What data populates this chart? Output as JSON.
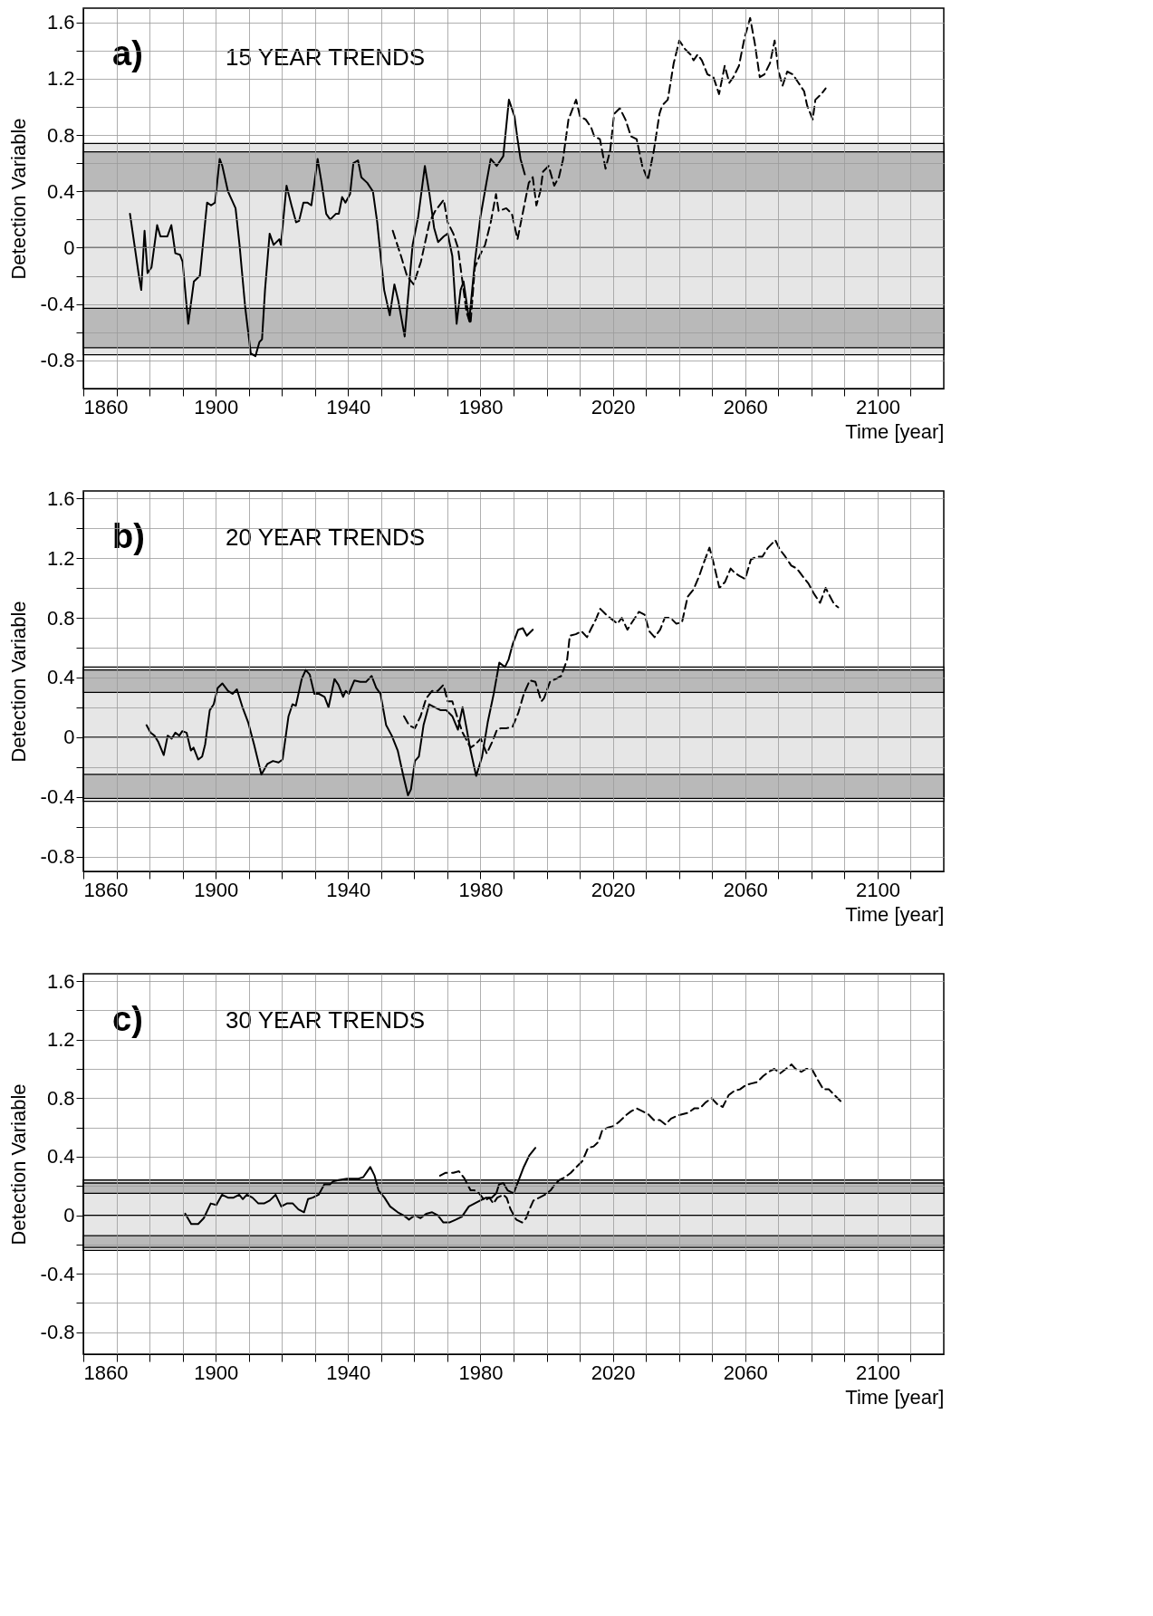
{
  "chart_data": [
    {
      "type": "line",
      "title": "15 YEAR TRENDS",
      "xlabel": "Time [year]",
      "ylabel": "Detection Variable",
      "annotations": [
        "a)"
      ],
      "xlim": [
        1860,
        2120
      ],
      "ylim": [
        -1.0,
        1.7
      ],
      "grid": true,
      "xticks": [
        1860,
        {
          "value": 1870,
          "label": null
        },
        {
          "value": 1880,
          "label": null
        },
        {
          "value": 1890,
          "label": null
        },
        1900,
        {
          "value": 1910,
          "label": null
        },
        {
          "value": 1920,
          "label": null
        },
        {
          "value": 1930,
          "label": null
        },
        1940,
        {
          "value": 1950,
          "label": null
        },
        {
          "value": 1960,
          "label": null
        },
        {
          "value": 1970,
          "label": null
        },
        1980,
        {
          "value": 1990,
          "label": null
        },
        {
          "value": 2000,
          "label": null
        },
        {
          "value": 2010,
          "label": null
        },
        2020,
        {
          "value": 2030,
          "label": null
        },
        {
          "value": 2040,
          "label": null
        },
        {
          "value": 2050,
          "label": null
        },
        2060,
        {
          "value": 2070,
          "label": null
        },
        {
          "value": 2080,
          "label": null
        },
        {
          "value": 2090,
          "label": null
        },
        2100,
        {
          "value": 2110,
          "label": null
        }
      ],
      "yticks": [
        -0.8,
        {
          "value": -0.6,
          "label": null
        },
        -0.4,
        {
          "value": -0.2,
          "label": null
        },
        0,
        {
          "value": 0.2,
          "label": null
        },
        0.4,
        {
          "value": 0.6,
          "label": null
        },
        0.8,
        {
          "value": 1.0,
          "label": null
        },
        1.2,
        {
          "value": 1.4,
          "label": null
        },
        1.6
      ],
      "bands": [
        {
          "axis": "y",
          "from": -0.76,
          "to": 0.74,
          "color": "#e6e6e6"
        },
        {
          "axis": "y",
          "from": 0.4,
          "to": 0.68,
          "color": "#b9b9b9"
        },
        {
          "axis": "y",
          "from": -0.71,
          "to": -0.43,
          "color": "#b9b9b9"
        }
      ],
      "ref_lines": [
        {
          "axis": "y",
          "value": 0
        }
      ],
      "series": [
        {
          "type": "line",
          "color": "#000000",
          "line_style": "solid",
          "x": [
            1874.1,
            1876.8,
            1877.5,
            1878.5,
            1879.4,
            1880.6,
            1882.3,
            1883.3,
            1885.4,
            1886.6,
            1887.8,
            1889.2,
            1890.0,
            1891.7,
            1893.4,
            1895.2,
            1897.4,
            1898.6,
            1899.8,
            1901.2,
            1902.0,
            1903.7,
            1906.0,
            1907.2,
            1908.9,
            1910.6,
            1912.0,
            1913.2,
            1914.0,
            1914.9,
            1916.3,
            1917.5,
            1919.2,
            1919.7,
            1921.4,
            1922.9,
            1924.3,
            1925.2,
            1926.5,
            1927.7,
            1928.9,
            1930.8,
            1932.0,
            1933.4,
            1934.6,
            1936.3,
            1937.2,
            1938.2,
            1939.2,
            1940.6,
            1941.6,
            1943.0,
            1944.0,
            1945.8,
            1947.5,
            1948.8,
            1950.9,
            1952.6,
            1954.0,
            1955.2,
            1957.1,
            1959.5,
            1961.2,
            1963.2,
            1964.6,
            1966.0,
            1967.2,
            1968.9,
            1970.1,
            1971.5,
            1972.8,
            1974.0,
            1974.9,
            1976.6,
            1978.3,
            1980.0,
            1981.8,
            1983.1,
            1984.9,
            1986.9,
            1988.6,
            1990.3,
            1991.2,
            1992.1,
            1993.4
          ],
          "values": [
            0.24,
            -0.2,
            -0.3,
            0.12,
            -0.18,
            -0.14,
            0.16,
            0.08,
            0.08,
            0.16,
            -0.04,
            -0.05,
            -0.1,
            -0.54,
            -0.24,
            -0.2,
            0.32,
            0.3,
            0.32,
            0.63,
            0.58,
            0.4,
            0.28,
            0.02,
            -0.42,
            -0.75,
            -0.77,
            -0.67,
            -0.65,
            -0.3,
            0.1,
            0.02,
            0.06,
            0.02,
            0.44,
            0.3,
            0.18,
            0.19,
            0.32,
            0.32,
            0.3,
            0.63,
            0.46,
            0.24,
            0.2,
            0.24,
            0.24,
            0.36,
            0.32,
            0.38,
            0.6,
            0.62,
            0.5,
            0.46,
            0.4,
            0.18,
            -0.3,
            -0.48,
            -0.26,
            -0.38,
            -0.63,
            0.02,
            0.22,
            0.58,
            0.38,
            0.14,
            0.04,
            0.08,
            0.1,
            -0.06,
            -0.54,
            -0.3,
            -0.24,
            -0.52,
            -0.1,
            0.22,
            0.46,
            0.63,
            0.58,
            0.65,
            1.05,
            0.93,
            0.77,
            0.63,
            0.52
          ]
        },
        {
          "type": "line",
          "color": "#000000",
          "line_style": "dashed",
          "x": [
            1953.5,
            1956.0,
            1957.8,
            1959.8,
            1962.0,
            1964.6,
            1966.3,
            1968.9,
            1970.1,
            1971.8,
            1973.2,
            1974.9,
            1975.8,
            1977.0,
            1978.3,
            1979.7,
            1981.4,
            1983.1,
            1984.7,
            1985.5,
            1987.8,
            1989.5,
            1991.2,
            1992.9,
            1994.6,
            1995.8,
            1996.9,
            1998.1,
            1998.9,
            2000.6,
            2002.3,
            2003.7,
            2004.9,
            2006.6,
            2008.9,
            2010.1,
            2011.8,
            2013.5,
            2014.4,
            2016.1,
            2017.8,
            2019.2,
            2020.4,
            2022.1,
            2023.8,
            2025.5,
            2027.2,
            2028.9,
            2030.6,
            2032.4,
            2034.1,
            2034.9,
            2036.6,
            2038.4,
            2040.1,
            2041.8,
            2043.5,
            2044.4,
            2045.6,
            2046.9,
            2048.6,
            2050.4,
            2052.1,
            2053.8,
            2055.2,
            2056.4,
            2058.1,
            2059.8,
            2061.5,
            2062.9,
            2064.4,
            2065.8,
            2067.5,
            2068.9,
            2070.1,
            2071.3,
            2072.7,
            2074.4,
            2076.1,
            2077.8,
            2078.7,
            2080.4,
            2081.2,
            2083.0,
            2084.3
          ],
          "values": [
            0.12,
            -0.06,
            -0.2,
            -0.26,
            -0.1,
            0.18,
            0.26,
            0.34,
            0.18,
            0.1,
            0,
            -0.3,
            -0.46,
            -0.54,
            -0.14,
            -0.06,
            0.02,
            0.18,
            0.38,
            0.26,
            0.28,
            0.24,
            0.06,
            0.26,
            0.46,
            0.5,
            0.3,
            0.4,
            0.54,
            0.58,
            0.44,
            0.5,
            0.62,
            0.91,
            1.05,
            0.93,
            0.91,
            0.85,
            0.79,
            0.77,
            0.56,
            0.69,
            0.95,
            0.99,
            0.91,
            0.79,
            0.77,
            0.58,
            0.48,
            0.69,
            0.95,
            1.01,
            1.05,
            1.31,
            1.47,
            1.41,
            1.37,
            1.33,
            1.37,
            1.33,
            1.23,
            1.21,
            1.09,
            1.29,
            1.17,
            1.21,
            1.29,
            1.49,
            1.63,
            1.45,
            1.21,
            1.23,
            1.31,
            1.47,
            1.25,
            1.15,
            1.25,
            1.23,
            1.17,
            1.11,
            1.01,
            0.91,
            1.05,
            1.09,
            1.13
          ]
        }
      ]
    },
    {
      "type": "line",
      "title": "20 YEAR TRENDS",
      "xlabel": "Time [year]",
      "ylabel": "Detection Variable",
      "annotations": [
        "b)"
      ],
      "xlim": [
        1860,
        2120
      ],
      "ylim": [
        -0.9,
        1.65
      ],
      "grid": true,
      "xticks": [
        1860,
        {
          "value": 1870,
          "label": null
        },
        {
          "value": 1880,
          "label": null
        },
        {
          "value": 1890,
          "label": null
        },
        1900,
        {
          "value": 1910,
          "label": null
        },
        {
          "value": 1920,
          "label": null
        },
        {
          "value": 1930,
          "label": null
        },
        1940,
        {
          "value": 1950,
          "label": null
        },
        {
          "value": 1960,
          "label": null
        },
        {
          "value": 1970,
          "label": null
        },
        1980,
        {
          "value": 1990,
          "label": null
        },
        {
          "value": 2000,
          "label": null
        },
        {
          "value": 2010,
          "label": null
        },
        2020,
        {
          "value": 2030,
          "label": null
        },
        {
          "value": 2040,
          "label": null
        },
        {
          "value": 2050,
          "label": null
        },
        2060,
        {
          "value": 2070,
          "label": null
        },
        {
          "value": 2080,
          "label": null
        },
        {
          "value": 2090,
          "label": null
        },
        2100,
        {
          "value": 2110,
          "label": null
        }
      ],
      "yticks": [
        -0.8,
        {
          "value": -0.6,
          "label": null
        },
        -0.4,
        {
          "value": -0.2,
          "label": null
        },
        0,
        {
          "value": 0.2,
          "label": null
        },
        0.4,
        {
          "value": 0.6,
          "label": null
        },
        0.8,
        {
          "value": 1.0,
          "label": null
        },
        1.2,
        {
          "value": 1.4,
          "label": null
        },
        1.6
      ],
      "bands": [
        {
          "axis": "y",
          "from": -0.43,
          "to": 0.47,
          "color": "#e6e6e6"
        },
        {
          "axis": "y",
          "from": 0.3,
          "to": 0.45,
          "color": "#b9b9b9"
        },
        {
          "axis": "y",
          "from": -0.41,
          "to": -0.25,
          "color": "#b9b9b9"
        }
      ],
      "ref_lines": [
        {
          "axis": "y",
          "value": 0
        }
      ],
      "series": [
        {
          "type": "line",
          "color": "#000000",
          "line_style": "solid",
          "x": [
            1879.1,
            1880.3,
            1881.5,
            1882.6,
            1884.3,
            1885.5,
            1886.7,
            1887.8,
            1889.0,
            1889.9,
            1891.2,
            1892.5,
            1893.3,
            1894.7,
            1895.9,
            1896.8,
            1898.2,
            1899.4,
            1900.6,
            1902.0,
            1903.7,
            1905.1,
            1906.4,
            1908.1,
            1909.8,
            1911.6,
            1913.8,
            1915.6,
            1917.3,
            1919.0,
            1920.2,
            1922.0,
            1923.2,
            1924.2,
            1926.0,
            1927.2,
            1928.4,
            1929.8,
            1931.2,
            1932.9,
            1934.1,
            1935.9,
            1937.1,
            1938.5,
            1939.3,
            1940.2,
            1941.9,
            1943.7,
            1945.4,
            1947.1,
            1948.5,
            1949.8,
            1951.5,
            1953.2,
            1955.0,
            1956.7,
            1958.1,
            1959.0,
            1960.2,
            1961.4,
            1962.8,
            1964.5,
            1966.2,
            1968.0,
            1969.7,
            1971.5,
            1973.2,
            1974.6,
            1975.8,
            1977.0,
            1978.7,
            1980.5,
            1982.2,
            1984.0,
            1985.7,
            1987.4,
            1988.5,
            1989.7,
            1991.4,
            1992.8,
            1994.0,
            1995.8
          ],
          "values": [
            0.08,
            0.03,
            0.01,
            -0.03,
            -0.12,
            0.01,
            -0.01,
            0.03,
            0.01,
            0.04,
            0.03,
            -0.09,
            -0.07,
            -0.15,
            -0.13,
            -0.05,
            0.18,
            0.22,
            0.33,
            0.36,
            0.31,
            0.29,
            0.32,
            0.2,
            0.1,
            -0.05,
            -0.25,
            -0.18,
            -0.16,
            -0.17,
            -0.15,
            0.14,
            0.22,
            0.21,
            0.39,
            0.45,
            0.42,
            0.29,
            0.29,
            0.27,
            0.2,
            0.39,
            0.35,
            0.27,
            0.31,
            0.29,
            0.38,
            0.37,
            0.37,
            0.41,
            0.33,
            0.29,
            0.08,
            0.01,
            -0.09,
            -0.26,
            -0.39,
            -0.35,
            -0.16,
            -0.13,
            0.08,
            0.22,
            0.2,
            0.18,
            0.18,
            0.14,
            0.05,
            0.2,
            0.06,
            -0.09,
            -0.26,
            -0.13,
            0.1,
            0.29,
            0.5,
            0.47,
            0.52,
            0.62,
            0.72,
            0.73,
            0.68,
            0.72
          ]
        },
        {
          "type": "line",
          "color": "#000000",
          "line_style": "dashed",
          "x": [
            1956.9,
            1958.4,
            1960.2,
            1961.9,
            1963.6,
            1965.4,
            1967.1,
            1968.8,
            1970.1,
            1971.5,
            1973.2,
            1974.6,
            1977.0,
            1978.4,
            1980.1,
            1981.9,
            1983.6,
            1985.0,
            1986.2,
            1987.9,
            1989.7,
            1991.4,
            1993.1,
            1994.9,
            1996.6,
            1998.4,
            1999.2,
            2001.0,
            2002.7,
            2004.4,
            2006.2,
            2007.0,
            2008.8,
            2010.5,
            2012.2,
            2013.5,
            2014.9,
            2016.2,
            2018.0,
            2019.7,
            2021.4,
            2022.7,
            2024.4,
            2025.8,
            2027.9,
            2029.6,
            2031.0,
            2032.6,
            2034.3,
            2035.7,
            2037.4,
            2039.2,
            2040.9,
            2042.6,
            2044.4,
            2046.1,
            2047.5,
            2049.2,
            2050.4,
            2052.2,
            2053.9,
            2055.6,
            2056.9,
            2058.3,
            2060.0,
            2061.7,
            2063.5,
            2065.2,
            2066.9,
            2069.1,
            2070.4,
            2072.1,
            2073.9,
            2075.6,
            2077.3,
            2079.1,
            2080.8,
            2082.6,
            2084.3,
            2085.7,
            2086.9,
            2088.1
          ],
          "values": [
            0.14,
            0.08,
            0.06,
            0.14,
            0.26,
            0.31,
            0.31,
            0.35,
            0.24,
            0.24,
            0.12,
            0.03,
            -0.07,
            -0.05,
            -0.01,
            -0.11,
            -0.03,
            0.05,
            0.06,
            0.06,
            0.07,
            0.16,
            0.29,
            0.38,
            0.37,
            0.24,
            0.26,
            0.37,
            0.39,
            0.41,
            0.52,
            0.68,
            0.69,
            0.71,
            0.67,
            0.73,
            0.79,
            0.86,
            0.82,
            0.79,
            0.76,
            0.8,
            0.72,
            0.77,
            0.84,
            0.82,
            0.71,
            0.67,
            0.72,
            0.8,
            0.8,
            0.76,
            0.77,
            0.94,
            0.99,
            1.08,
            1.17,
            1.27,
            1.17,
            1.0,
            1.04,
            1.13,
            1.1,
            1.08,
            1.06,
            1.19,
            1.21,
            1.21,
            1.27,
            1.32,
            1.26,
            1.21,
            1.15,
            1.13,
            1.08,
            1.03,
            0.96,
            0.9,
            1.0,
            0.94,
            0.89,
            0.87
          ]
        }
      ]
    },
    {
      "type": "line",
      "title": "30 YEAR TRENDS",
      "xlabel": "Time [year]",
      "ylabel": "Detection Variable",
      "annotations": [
        "c)"
      ],
      "xlim": [
        1860,
        2120
      ],
      "ylim": [
        -0.95,
        1.65
      ],
      "grid": true,
      "xticks": [
        1860,
        {
          "value": 1870,
          "label": null
        },
        {
          "value": 1880,
          "label": null
        },
        {
          "value": 1890,
          "label": null
        },
        1900,
        {
          "value": 1910,
          "label": null
        },
        {
          "value": 1920,
          "label": null
        },
        {
          "value": 1930,
          "label": null
        },
        1940,
        {
          "value": 1950,
          "label": null
        },
        {
          "value": 1960,
          "label": null
        },
        {
          "value": 1970,
          "label": null
        },
        1980,
        {
          "value": 1990,
          "label": null
        },
        {
          "value": 2000,
          "label": null
        },
        {
          "value": 2010,
          "label": null
        },
        2020,
        {
          "value": 2030,
          "label": null
        },
        {
          "value": 2040,
          "label": null
        },
        {
          "value": 2050,
          "label": null
        },
        2060,
        {
          "value": 2070,
          "label": null
        },
        {
          "value": 2080,
          "label": null
        },
        {
          "value": 2090,
          "label": null
        },
        2100,
        {
          "value": 2110,
          "label": null
        }
      ],
      "yticks": [
        -0.8,
        {
          "value": -0.6,
          "label": null
        },
        -0.4,
        {
          "value": -0.2,
          "label": null
        },
        0,
        {
          "value": 0.2,
          "label": null
        },
        0.4,
        {
          "value": 0.6,
          "label": null
        },
        0.8,
        {
          "value": 1.0,
          "label": null
        },
        1.2,
        {
          "value": 1.4,
          "label": null
        },
        1.6
      ],
      "bands": [
        {
          "axis": "y",
          "from": -0.24,
          "to": 0.24,
          "color": "#e6e6e6"
        },
        {
          "axis": "y",
          "from": 0.15,
          "to": 0.22,
          "color": "#b9b9b9"
        },
        {
          "axis": "y",
          "from": -0.22,
          "to": -0.14,
          "color": "#b9b9b9"
        }
      ],
      "ref_lines": [
        {
          "axis": "y",
          "value": 0
        }
      ],
      "series": [
        {
          "type": "line",
          "color": "#000000",
          "line_style": "solid",
          "x": [
            1890.8,
            1892.6,
            1894.7,
            1896.4,
            1898.5,
            1900.2,
            1901.9,
            1903.7,
            1905.4,
            1907.1,
            1908.2,
            1909.4,
            1911.1,
            1912.9,
            1914.6,
            1916.3,
            1918.1,
            1919.8,
            1921.5,
            1923.3,
            1925.0,
            1926.7,
            1927.9,
            1929.3,
            1931.1,
            1932.8,
            1934.5,
            1935.4,
            1937.1,
            1939.7,
            1941.8,
            1943.2,
            1944.6,
            1945.8,
            1946.7,
            1948.0,
            1949.2,
            1951.0,
            1952.7,
            1955.0,
            1956.7,
            1958.4,
            1960.2,
            1961.9,
            1963.6,
            1965.4,
            1967.1,
            1968.8,
            1970.6,
            1972.6,
            1974.4,
            1976.5,
            1978.2,
            1979.9,
            1981.7,
            1983.4,
            1984.8,
            1985.6,
            1986.9,
            1988.2,
            1990.0,
            1991.4,
            1993.1,
            1994.8,
            1996.6
          ],
          "values": [
            0.01,
            -0.06,
            -0.06,
            -0.02,
            0.08,
            0.07,
            0.14,
            0.12,
            0.12,
            0.14,
            0.11,
            0.14,
            0.12,
            0.08,
            0.08,
            0.1,
            0.14,
            0.06,
            0.08,
            0.08,
            0.04,
            0.02,
            0.11,
            0.12,
            0.14,
            0.21,
            0.21,
            0.23,
            0.24,
            0.25,
            0.25,
            0.25,
            0.26,
            0.3,
            0.33,
            0.27,
            0.17,
            0.12,
            0.06,
            0.02,
            0,
            -0.03,
            0,
            -0.02,
            0.01,
            0.02,
            0,
            -0.05,
            -0.05,
            -0.03,
            -0.01,
            0.06,
            0.08,
            0.1,
            0.12,
            0.12,
            0.15,
            0.21,
            0.22,
            0.17,
            0.15,
            0.23,
            0.33,
            0.41,
            0.46
          ]
        },
        {
          "type": "line",
          "color": "#000000",
          "line_style": "dashed",
          "x": [
            1967.8,
            1969.5,
            1971.8,
            1973.5,
            1975.2,
            1977.0,
            1978.2,
            1979.6,
            1981.3,
            1982.7,
            1983.9,
            1985.1,
            1986.9,
            1987.9,
            1989.1,
            1990.8,
            1992.6,
            1993.8,
            1994.8,
            1996.0,
            1997.8,
            1999.5,
            2001.2,
            2002.5,
            2003.8,
            2005.6,
            2007.3,
            2009.0,
            2010.8,
            2012.5,
            2014.2,
            2015.6,
            2016.8,
            2018.6,
            2020.3,
            2022.0,
            2023.8,
            2025.5,
            2027.2,
            2029.0,
            2030.7,
            2032.4,
            2034.2,
            2035.9,
            2037.6,
            2039.4,
            2041.1,
            2042.8,
            2044.6,
            2046.3,
            2048.0,
            2049.8,
            2051.5,
            2053.2,
            2055.0,
            2056.7,
            2058.4,
            2060.2,
            2061.9,
            2063.6,
            2065.4,
            2067.1,
            2068.8,
            2070.6,
            2072.3,
            2074.0,
            2075.2,
            2077.0,
            2078.4,
            2080.1,
            2081.8,
            2083.6,
            2085.3,
            2087.0,
            2088.8
          ],
          "values": [
            0.27,
            0.29,
            0.29,
            0.3,
            0.25,
            0.17,
            0.17,
            0.15,
            0.1,
            0.12,
            0.08,
            0.12,
            0.14,
            0.12,
            0.04,
            -0.03,
            -0.05,
            -0.02,
            0.04,
            0.1,
            0.12,
            0.14,
            0.17,
            0.21,
            0.24,
            0.26,
            0.29,
            0.33,
            0.37,
            0.46,
            0.47,
            0.5,
            0.58,
            0.6,
            0.61,
            0.64,
            0.68,
            0.71,
            0.73,
            0.71,
            0.69,
            0.65,
            0.65,
            0.62,
            0.66,
            0.68,
            0.69,
            0.7,
            0.73,
            0.73,
            0.77,
            0.8,
            0.76,
            0.74,
            0.82,
            0.85,
            0.86,
            0.89,
            0.9,
            0.91,
            0.95,
            0.98,
            1.0,
            0.97,
            1.0,
            1.03,
            1.0,
            0.98,
            1.0,
            1.0,
            0.93,
            0.86,
            0.86,
            0.82,
            0.78
          ]
        }
      ]
    }
  ]
}
